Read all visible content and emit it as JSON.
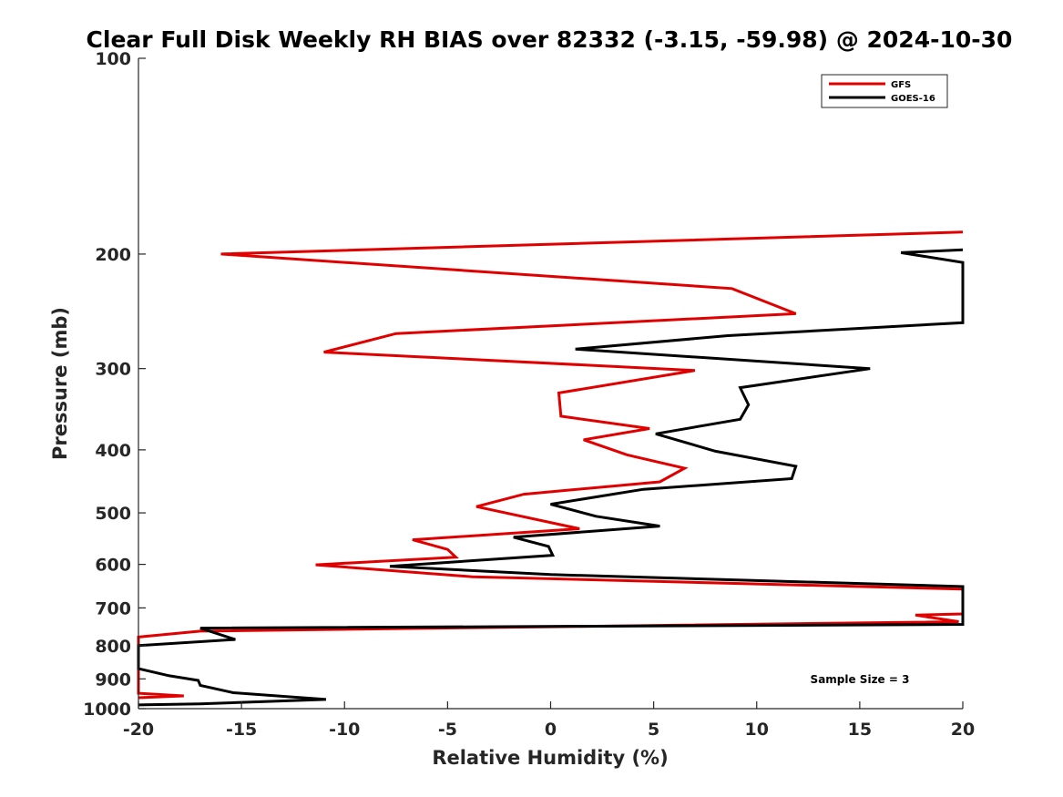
{
  "chart_data": {
    "type": "line",
    "title": "Clear Full Disk Weekly RH BIAS over 82332 (-3.15, -59.98) @ 2024-10-30",
    "xlabel": "Relative Humidity (%)",
    "ylabel": "Pressure (mb)",
    "xlim": [
      -20,
      20
    ],
    "ylim": [
      100,
      1000
    ],
    "y_scale": "log",
    "y_reversed": true,
    "x_ticks": [
      "-20",
      "-15",
      "-10",
      "-5",
      "0",
      "5",
      "10",
      "15",
      "20"
    ],
    "y_ticks": [
      "100",
      "200",
      "300",
      "400",
      "500",
      "600",
      "700",
      "800",
      "900",
      "1000"
    ],
    "legend": {
      "position": "top-right",
      "entries": [
        "GFS",
        "GOES-16"
      ]
    },
    "annotation": "Sample Size = 3",
    "grid": false,
    "series": [
      {
        "name": "GFS",
        "color": "#e00000",
        "points": [
          [
            20,
            185
          ],
          [
            -16,
            200
          ],
          [
            8.8,
            226
          ],
          [
            11.9,
            247
          ],
          [
            -7.5,
            265
          ],
          [
            -11.0,
            283
          ],
          [
            7.0,
            302
          ],
          [
            0.4,
            327
          ],
          [
            0.5,
            355
          ],
          [
            4.8,
            371
          ],
          [
            1.6,
            386
          ],
          [
            3.7,
            407
          ],
          [
            6.5,
            427
          ],
          [
            5.3,
            448
          ],
          [
            -1.3,
            468
          ],
          [
            -3.6,
            489
          ],
          [
            1.4,
            529
          ],
          [
            -6.7,
            550
          ],
          [
            -5.0,
            569
          ],
          [
            -4.6,
            585
          ],
          [
            -11.4,
            601
          ],
          [
            -3.8,
            627
          ],
          [
            20,
            655
          ],
          [
            20,
            715
          ],
          [
            17.7,
            718
          ],
          [
            19.8,
            735
          ],
          [
            -17,
            760
          ],
          [
            -20,
            776
          ],
          [
            -20,
            947
          ],
          [
            -17.8,
            956
          ],
          [
            -20,
            962
          ]
        ]
      },
      {
        "name": "GOES-16",
        "color": "#000000",
        "points": [
          [
            20,
            197
          ],
          [
            17.0,
            199
          ],
          [
            20,
            206
          ],
          [
            20,
            255
          ],
          [
            8.6,
            267
          ],
          [
            1.2,
            280
          ],
          [
            15.5,
            300
          ],
          [
            9.2,
            321
          ],
          [
            9.6,
            341
          ],
          [
            9.2,
            359
          ],
          [
            5.1,
            378
          ],
          [
            8.0,
            402
          ],
          [
            11.9,
            424
          ],
          [
            11.7,
            443
          ],
          [
            4.5,
            460
          ],
          [
            0.0,
            485
          ],
          [
            2.2,
            506
          ],
          [
            5.3,
            524
          ],
          [
            -1.8,
            545
          ],
          [
            -0.1,
            563
          ],
          [
            0.1,
            581
          ],
          [
            -7.8,
            604
          ],
          [
            0.0,
            622
          ],
          [
            20,
            649
          ],
          [
            20,
            742
          ],
          [
            -17,
            752
          ],
          [
            -15.3,
            783
          ],
          [
            -20,
            800
          ],
          [
            -20,
            868
          ],
          [
            -18.5,
            890
          ],
          [
            -17.1,
            905
          ],
          [
            -17.0,
            921
          ],
          [
            -15.4,
            945
          ],
          [
            -10.9,
            968
          ],
          [
            -17.0,
            983
          ],
          [
            -20,
            987
          ]
        ]
      }
    ]
  }
}
